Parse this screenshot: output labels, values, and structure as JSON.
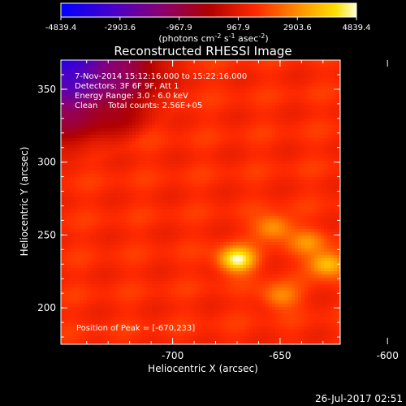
{
  "chart_data": {
    "type": "heatmap",
    "title": "Reconstructed RHESSI Image",
    "xlabel": "Heliocentric X (arcsec)",
    "ylabel": "Heliocentric Y (arcsec)",
    "x_range": [
      -752,
      -622
    ],
    "y_range": [
      175,
      370
    ],
    "x_ticks": [
      "-700",
      "-650",
      "-600"
    ],
    "x_tick_values": [
      -700,
      -650,
      -600
    ],
    "y_ticks": [
      "200",
      "250",
      "300",
      "350"
    ],
    "y_tick_values": [
      200,
      250,
      300,
      350
    ],
    "colorbar": {
      "min": -4839.4,
      "max": 4839.4,
      "tick_labels": [
        "-4839.4",
        "-2903.6",
        "-967.9",
        "967.9",
        "2903.6",
        "4839.4"
      ],
      "tick_values": [
        -4839.4,
        -2903.6,
        -967.9,
        967.9,
        2903.6,
        4839.4
      ],
      "units_text": "(photons cm",
      "units_sup1": "-2",
      "units_mid": " s",
      "units_sup2": "-1",
      "units_end": " asec",
      "units_sup3": "-2",
      "units_close": ")"
    },
    "annotations": [
      "7-Nov-2014 15:12:16.000 to 15:22:16.000",
      "Detectors: 3F 6F 9F, Att 1",
      "Energy Range: 3.0 - 6.0 keV",
      "Clean    Total counts: 2.56E+05"
    ],
    "peak_label": "Position of Peak = [-670,233]",
    "peak": [
      -670,
      233
    ],
    "sources": [
      {
        "x": -670,
        "y": 233,
        "peak": 4839
      },
      {
        "x": -628,
        "y": 230,
        "peak": 3950
      },
      {
        "x": -653,
        "y": 255,
        "peak": 3300
      },
      {
        "x": -650,
        "y": 208,
        "peak": 3000
      },
      {
        "x": -637,
        "y": 245,
        "peak": 2800
      }
    ],
    "background_level": 1500
  },
  "footer": {
    "timestamp": "26-Jul-2017 02:51"
  }
}
